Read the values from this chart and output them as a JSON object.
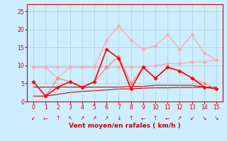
{
  "x": [
    0,
    1,
    2,
    3,
    4,
    5,
    6,
    7,
    8,
    9,
    10,
    11,
    12,
    13,
    14,
    15
  ],
  "series": [
    {
      "name": "rafales_top",
      "y": [
        9.5,
        9.5,
        6.5,
        9.5,
        9.5,
        9.5,
        17.0,
        21.0,
        17.0,
        14.5,
        15.5,
        18.5,
        14.5,
        18.5,
        13.5,
        11.5
      ],
      "color": "#ffaaaa",
      "marker": "D",
      "markersize": 2.5,
      "linewidth": 1.0,
      "zorder": 2,
      "markerfacecolor": "#ffaaaa"
    },
    {
      "name": "moyen_top",
      "y": [
        9.5,
        9.5,
        9.5,
        9.5,
        9.5,
        9.5,
        9.5,
        9.5,
        9.5,
        9.5,
        10.0,
        10.5,
        10.5,
        11.0,
        11.0,
        11.5
      ],
      "color": "#ffaaaa",
      "marker": "D",
      "markersize": 2.5,
      "linewidth": 1.0,
      "zorder": 2,
      "markerfacecolor": "#ffaaaa"
    },
    {
      "name": "rafales_mid",
      "y": [
        5.5,
        1.5,
        6.5,
        5.5,
        4.0,
        5.5,
        9.5,
        12.5,
        5.0,
        9.5,
        6.5,
        9.5,
        8.5,
        6.5,
        5.0,
        3.5
      ],
      "color": "#ff8888",
      "marker": "D",
      "markersize": 2.5,
      "linewidth": 1.0,
      "zorder": 3,
      "markerfacecolor": "#ff8888"
    },
    {
      "name": "wind_main_red",
      "y": [
        5.5,
        1.5,
        4.0,
        5.5,
        4.0,
        5.5,
        14.5,
        12.0,
        3.5,
        9.5,
        6.5,
        9.5,
        8.5,
        6.5,
        4.0,
        3.5
      ],
      "color": "#ff0000",
      "marker": "D",
      "markersize": 2.5,
      "linewidth": 1.2,
      "zorder": 4,
      "markerfacecolor": "#ff0000"
    },
    {
      "name": "baseline_upper",
      "y": [
        4.0,
        4.0,
        4.0,
        4.0,
        4.0,
        4.0,
        4.0,
        4.0,
        4.2,
        4.2,
        4.5,
        4.5,
        4.5,
        4.5,
        4.0,
        4.0
      ],
      "color": "#cc0000",
      "marker": null,
      "markersize": 0,
      "linewidth": 0.8,
      "zorder": 1,
      "markerfacecolor": "#cc0000"
    },
    {
      "name": "baseline_lower",
      "y": [
        1.5,
        1.5,
        2.0,
        2.5,
        2.8,
        3.0,
        3.2,
        3.5,
        3.5,
        3.7,
        3.8,
        3.8,
        3.9,
        3.9,
        4.0,
        4.0
      ],
      "color": "#cc0000",
      "marker": null,
      "markersize": 0,
      "linewidth": 0.8,
      "zorder": 1,
      "markerfacecolor": "#cc0000"
    }
  ],
  "wind_arrows": [
    "↙",
    "←",
    "↑",
    "↖",
    "↗",
    "↗",
    "↗",
    "↓",
    "↑",
    "←",
    "↑",
    "←",
    "↗",
    "↙",
    "↘",
    "↘"
  ],
  "xlabel": "Vent moyen/en rafales ( km/h )",
  "xlim": [
    -0.5,
    15.5
  ],
  "ylim": [
    0,
    27
  ],
  "yticks": [
    0,
    5,
    10,
    15,
    20,
    25
  ],
  "xticks": [
    0,
    1,
    2,
    3,
    4,
    5,
    6,
    7,
    8,
    9,
    10,
    11,
    12,
    13,
    14,
    15
  ],
  "background_color": "#cceeff",
  "grid_color": "#aacccc",
  "xlabel_color": "#cc0000",
  "tick_color": "#cc0000",
  "spine_color": "#cc0000"
}
